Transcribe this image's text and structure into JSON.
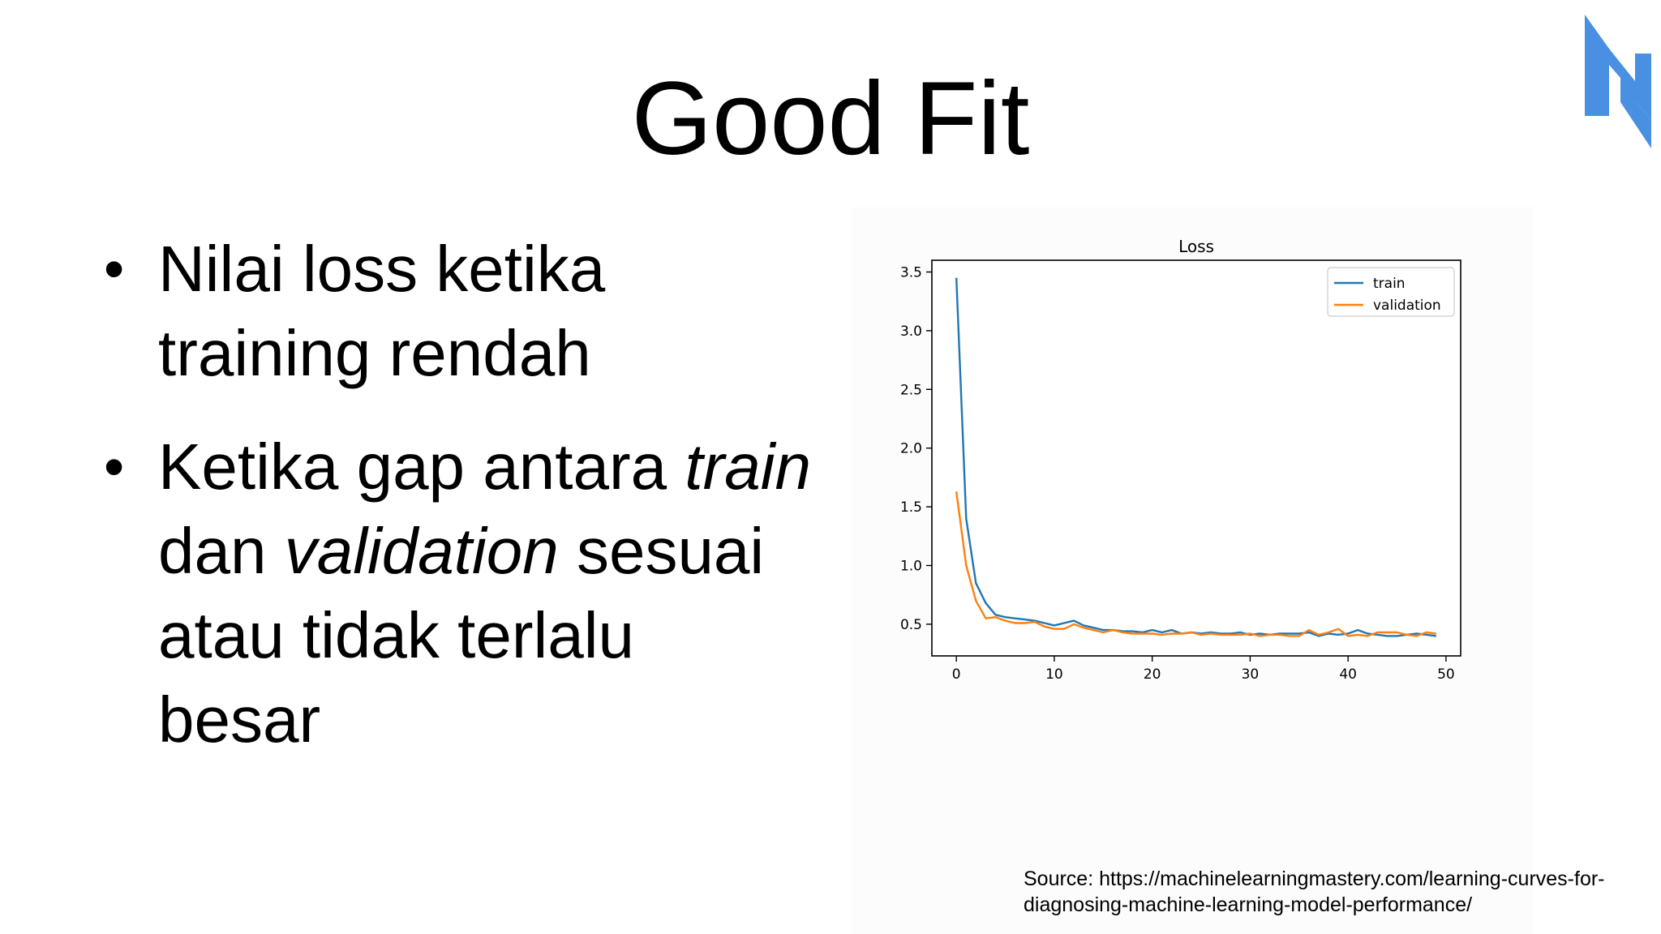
{
  "slide": {
    "title": "Good Fit",
    "bullets": [
      {
        "marker": "•",
        "parts": [
          {
            "text": "Nilai loss ketika training rendah",
            "italic": false
          }
        ]
      },
      {
        "marker": "•",
        "parts": [
          {
            "text": "Ketika gap antara ",
            "italic": false
          },
          {
            "text": "train",
            "italic": true
          },
          {
            "text": " dan ",
            "italic": false
          },
          {
            "text": "validation",
            "italic": true
          },
          {
            "text": " sesuai atau tidak terlalu besar",
            "italic": false
          }
        ]
      }
    ],
    "source": "Source: https://machinelearningmastery.com/learning-curves-for-diagnosing-machine-learning-model-performance/",
    "logo_color": "#4a90e2"
  },
  "chart_data": {
    "type": "line",
    "title": "Loss",
    "xlabel": "",
    "ylabel": "",
    "xlim": [
      -2.5,
      51.5
    ],
    "ylim": [
      0.23,
      3.6
    ],
    "xticks": [
      0,
      10,
      20,
      30,
      40,
      50
    ],
    "yticks": [
      0.5,
      1.0,
      1.5,
      2.0,
      2.5,
      3.0,
      3.5
    ],
    "grid": false,
    "legend_position": "top-right",
    "series": [
      {
        "name": "train",
        "color": "#1f77b4",
        "x": [
          0,
          1,
          2,
          3,
          4,
          5,
          6,
          7,
          8,
          9,
          10,
          11,
          12,
          13,
          14,
          15,
          16,
          17,
          18,
          19,
          20,
          21,
          22,
          23,
          24,
          25,
          26,
          27,
          28,
          29,
          30,
          31,
          32,
          33,
          34,
          35,
          36,
          37,
          38,
          39,
          40,
          41,
          42,
          43,
          44,
          45,
          46,
          47,
          48,
          49
        ],
        "y": [
          3.45,
          1.4,
          0.85,
          0.68,
          0.58,
          0.56,
          0.55,
          0.54,
          0.53,
          0.51,
          0.49,
          0.51,
          0.53,
          0.49,
          0.47,
          0.45,
          0.45,
          0.44,
          0.44,
          0.43,
          0.45,
          0.43,
          0.45,
          0.42,
          0.43,
          0.42,
          0.43,
          0.42,
          0.42,
          0.43,
          0.41,
          0.42,
          0.41,
          0.42,
          0.42,
          0.42,
          0.43,
          0.4,
          0.42,
          0.41,
          0.42,
          0.45,
          0.42,
          0.41,
          0.4,
          0.4,
          0.41,
          0.42,
          0.41,
          0.4
        ]
      },
      {
        "name": "validation",
        "color": "#ff7f0e",
        "x": [
          0,
          1,
          2,
          3,
          4,
          5,
          6,
          7,
          8,
          9,
          10,
          11,
          12,
          13,
          14,
          15,
          16,
          17,
          18,
          19,
          20,
          21,
          22,
          23,
          24,
          25,
          26,
          27,
          28,
          29,
          30,
          31,
          32,
          33,
          34,
          35,
          36,
          37,
          38,
          39,
          40,
          41,
          42,
          43,
          44,
          45,
          46,
          47,
          48,
          49
        ],
        "y": [
          1.63,
          1.0,
          0.7,
          0.55,
          0.56,
          0.53,
          0.51,
          0.51,
          0.52,
          0.48,
          0.46,
          0.46,
          0.5,
          0.47,
          0.45,
          0.43,
          0.45,
          0.43,
          0.42,
          0.42,
          0.42,
          0.41,
          0.42,
          0.42,
          0.43,
          0.41,
          0.42,
          0.41,
          0.41,
          0.41,
          0.42,
          0.4,
          0.41,
          0.41,
          0.4,
          0.4,
          0.45,
          0.41,
          0.43,
          0.46,
          0.4,
          0.41,
          0.4,
          0.43,
          0.43,
          0.43,
          0.41,
          0.4,
          0.43,
          0.42
        ]
      }
    ]
  }
}
